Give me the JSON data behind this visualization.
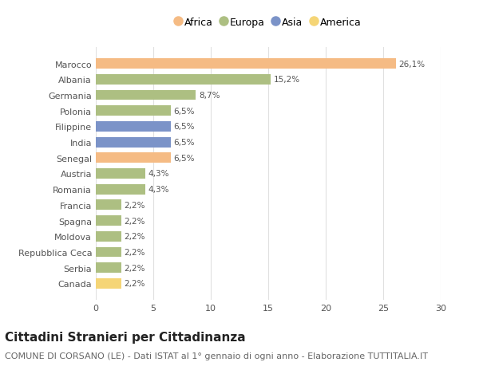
{
  "categories": [
    "Marocco",
    "Albania",
    "Germania",
    "Polonia",
    "Filippine",
    "India",
    "Senegal",
    "Austria",
    "Romania",
    "Francia",
    "Spagna",
    "Moldova",
    "Repubblica Ceca",
    "Serbia",
    "Canada"
  ],
  "values": [
    26.1,
    15.2,
    8.7,
    6.5,
    6.5,
    6.5,
    6.5,
    4.3,
    4.3,
    2.2,
    2.2,
    2.2,
    2.2,
    2.2,
    2.2
  ],
  "continents": [
    "Africa",
    "Europa",
    "Europa",
    "Europa",
    "Asia",
    "Asia",
    "Africa",
    "Europa",
    "Europa",
    "Europa",
    "Europa",
    "Europa",
    "Europa",
    "Europa",
    "America"
  ],
  "colors": {
    "Africa": "#F5BB84",
    "Europa": "#ADBF82",
    "Asia": "#7B93C8",
    "America": "#F5D576"
  },
  "legend_order": [
    "Africa",
    "Europa",
    "Asia",
    "America"
  ],
  "xlim": [
    0,
    30
  ],
  "xticks": [
    0,
    5,
    10,
    15,
    20,
    25,
    30
  ],
  "title": "Cittadini Stranieri per Cittadinanza",
  "subtitle": "COMUNE DI CORSANO (LE) - Dati ISTAT al 1° gennaio di ogni anno - Elaborazione TUTTITALIA.IT",
  "bg_color": "#ffffff",
  "grid_color": "#e0e0e0",
  "bar_height": 0.65,
  "title_fontsize": 11,
  "subtitle_fontsize": 8,
  "label_fontsize": 7.5,
  "tick_fontsize": 8,
  "legend_fontsize": 9
}
